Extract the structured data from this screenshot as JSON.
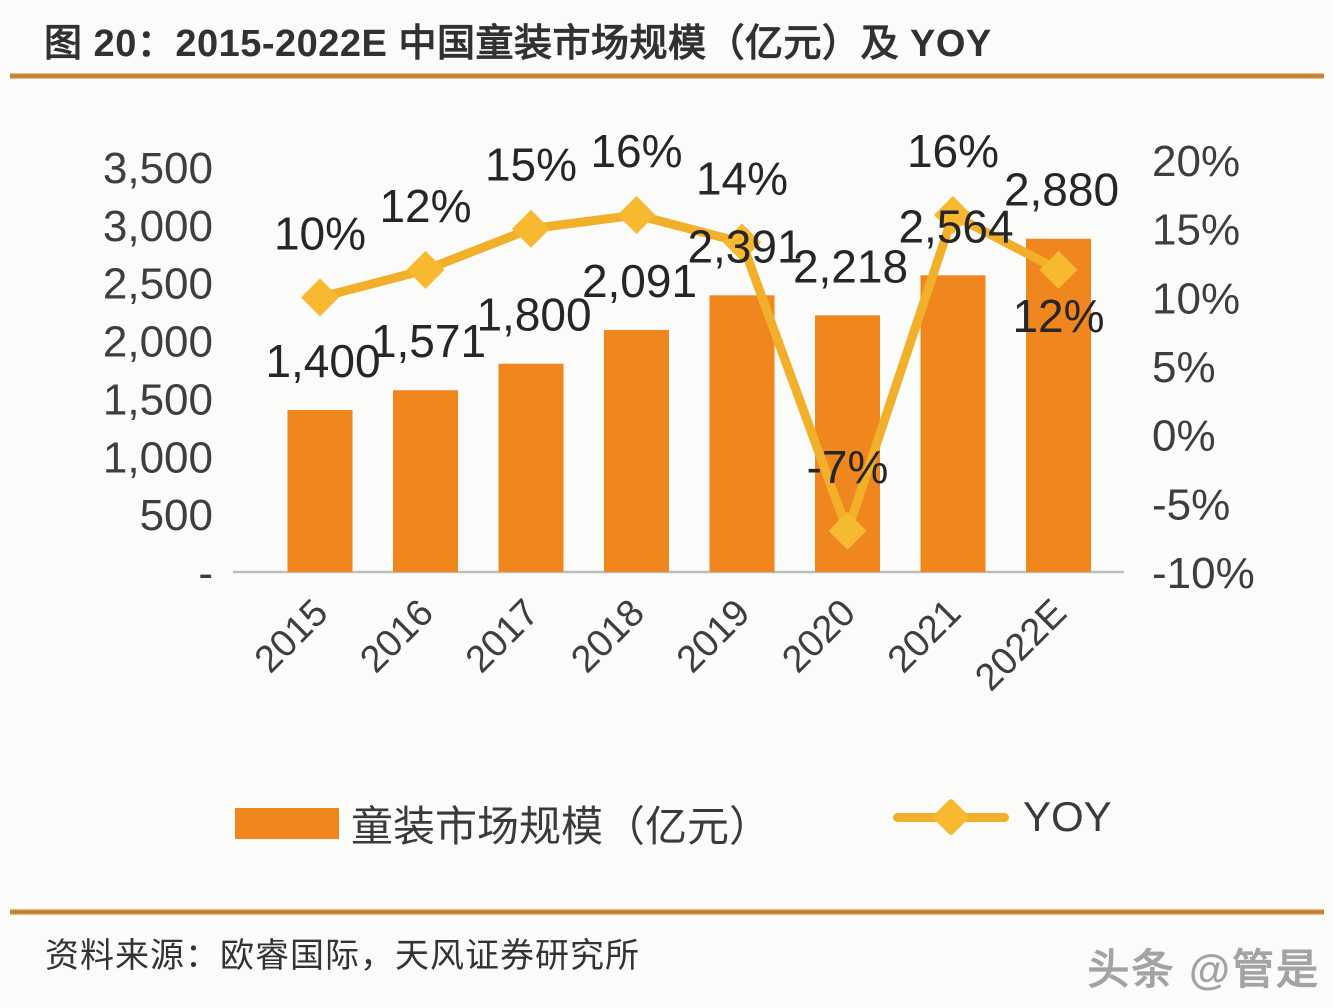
{
  "page": {
    "title": "图 20：2015-2022E 中国童装市场规模（亿元）及 YOY",
    "source": "资料来源：欧睿国际，天风证券研究所",
    "watermark": "头条 @管是"
  },
  "legend": {
    "bar_label": "童装市场规模（亿元）",
    "line_label": "YOY"
  },
  "chart_data": {
    "type": "bar+line",
    "title": "2015-2022E 中国童装市场规模（亿元）及 YOY",
    "categories": [
      "2015",
      "2016",
      "2017",
      "2018",
      "2019",
      "2020",
      "2021",
      "2022E"
    ],
    "series": [
      {
        "name": "童装市场规模（亿元）",
        "type": "bar",
        "axis": "left",
        "values": [
          1400,
          1571,
          1800,
          2091,
          2391,
          2218,
          2564,
          2880
        ],
        "labels": [
          "1,400",
          "1,571",
          "1,800",
          "2,091",
          "2,391",
          "2,218",
          "2,564",
          "2,880"
        ]
      },
      {
        "name": "YOY",
        "type": "line",
        "axis": "right",
        "values": [
          10,
          12,
          15,
          16,
          14,
          -7,
          16,
          12
        ],
        "labels": [
          "10%",
          "12%",
          "15%",
          "16%",
          "14%",
          "-7%",
          "16%",
          "12%"
        ]
      }
    ],
    "left_axis": {
      "range": [
        0,
        3500
      ],
      "ticks": [
        {
          "label": "3,500",
          "value": 3500
        },
        {
          "label": "3,000",
          "value": 3000
        },
        {
          "label": "2,500",
          "value": 2500
        },
        {
          "label": "2,000",
          "value": 2000
        },
        {
          "label": "1,500",
          "value": 1500
        },
        {
          "label": "1,000",
          "value": 1000
        },
        {
          "label": "500",
          "value": 500
        },
        {
          "label": "-",
          "value": 0
        }
      ]
    },
    "right_axis": {
      "range": [
        -10,
        20
      ],
      "ticks": [
        {
          "label": "20%",
          "value": 20
        },
        {
          "label": "15%",
          "value": 15
        },
        {
          "label": "10%",
          "value": 10
        },
        {
          "label": "5%",
          "value": 5
        },
        {
          "label": "0%",
          "value": 0
        },
        {
          "label": "-5%",
          "value": -5
        },
        {
          "label": "-10%",
          "value": -10
        }
      ]
    },
    "grid": false,
    "legend_position": "bottom",
    "line_label_below_indices": [
      7
    ],
    "colors": {
      "bar": "#F0861E",
      "line": "#F2AF2A",
      "marker": "#F6B92F",
      "axis_text": "#3E3E3E",
      "label_text": "#262626",
      "baseline": "#BDBDBD"
    }
  }
}
